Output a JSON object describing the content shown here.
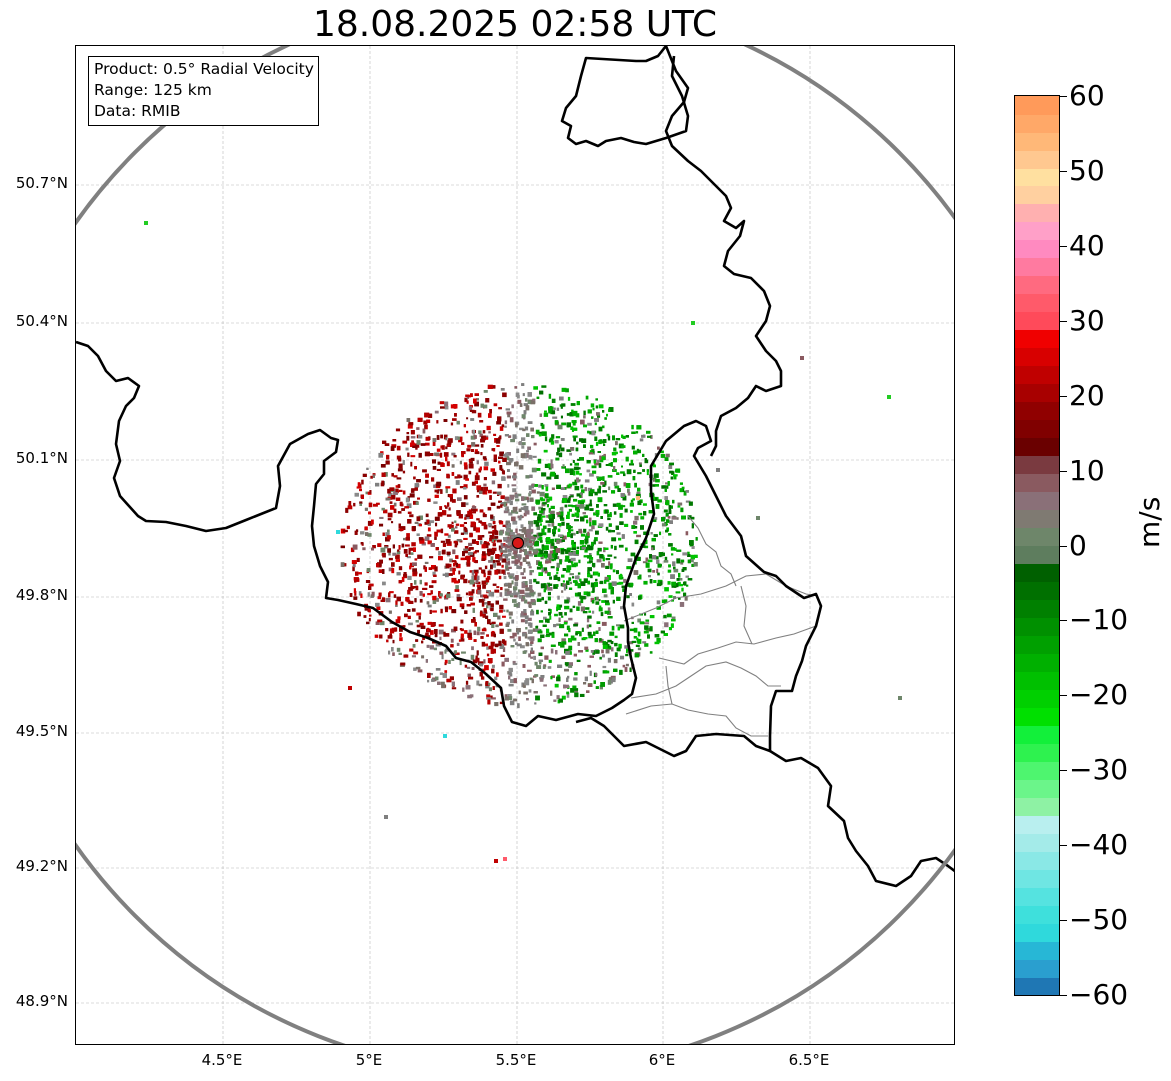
{
  "title": "18.08.2025 02:58 UTC",
  "info": {
    "product": "Product: 0.5° Radial Velocity",
    "range": "Range: 125 km",
    "source": "Data: RMIB"
  },
  "axes": {
    "lat_ticks": [
      "50.7°N",
      "50.4°N",
      "50.1°N",
      "49.8°N",
      "49.5°N",
      "49.2°N",
      "48.9°N"
    ],
    "lon_ticks": [
      "4.5°E",
      "5°E",
      "5.5°E",
      "6°E",
      "6.5°E"
    ]
  },
  "colorbar": {
    "unit": "m/s",
    "min": -60,
    "max": 60,
    "ticks": [
      "60",
      "50",
      "40",
      "30",
      "20",
      "10",
      "0",
      "−10",
      "−20",
      "−30",
      "−40",
      "−50",
      "−60"
    ],
    "colors": [
      "#1f77b4",
      "#2a9fcf",
      "#27b7d6",
      "#2fd9dc",
      "#3ee0dc",
      "#55e3e0",
      "#6fe6e3",
      "#8ae8e6",
      "#a4ebe9",
      "#b9efef",
      "#8ef2a4",
      "#6bf58a",
      "#4ef56f",
      "#2ef24f",
      "#12f03a",
      "#00e000",
      "#00d000",
      "#00c000",
      "#00b000",
      "#00a000",
      "#009000",
      "#008000",
      "#007000",
      "#006000",
      "#5e7d5e",
      "#6e866a",
      "#7f7a72",
      "#8a7078",
      "#8a5a60",
      "#7a3a40",
      "#6a0000",
      "#800000",
      "#900000",
      "#a80000",
      "#c00000",
      "#d80000",
      "#f00000",
      "#ff4a5a",
      "#ff5a6a",
      "#ff6a80",
      "#ff7aa0",
      "#ff8ac0",
      "#ffa0c8",
      "#ffb0b0",
      "#ffd0a0",
      "#ffe0a0",
      "#ffc890",
      "#ffb878",
      "#ffa868",
      "#ff9a5a"
    ]
  },
  "radar_site": {
    "name": "radar site",
    "lon": 5.505,
    "lat": 49.914
  },
  "velocity_field": {
    "description": "Radial velocity echoes around the radar site: receding (red) to the west, approaching (green) to the east, near-zero (grey) along the centre line."
  }
}
